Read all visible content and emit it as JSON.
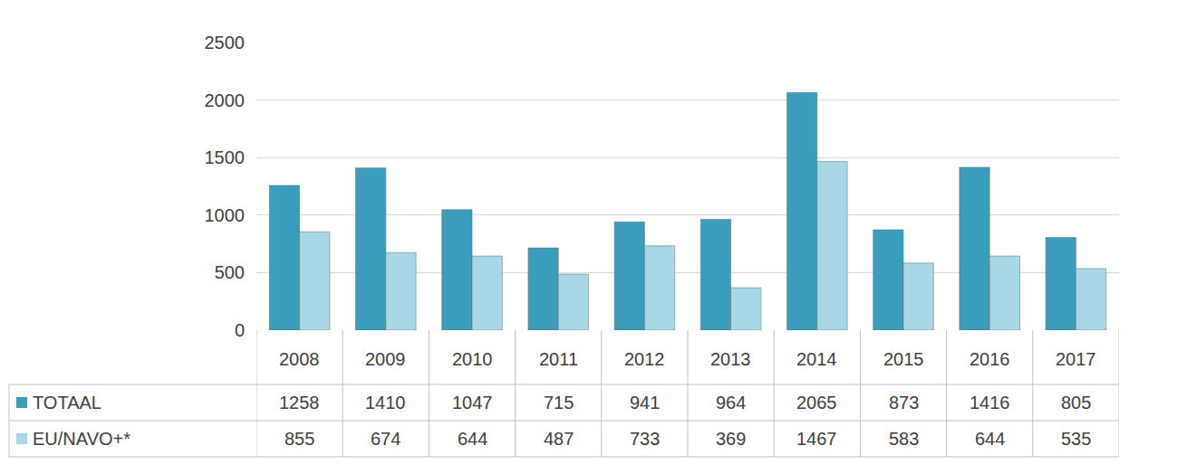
{
  "chart_data": {
    "type": "bar",
    "categories": [
      "2008",
      "2009",
      "2010",
      "2011",
      "2012",
      "2013",
      "2014",
      "2015",
      "2016",
      "2017"
    ],
    "series": [
      {
        "name": "TOTAAL",
        "color": "#3a9dbb",
        "values": [
          1258,
          1410,
          1047,
          715,
          941,
          964,
          2065,
          873,
          1416,
          805
        ]
      },
      {
        "name": "EU/NAVO+*",
        "color": "#a8d8e6",
        "values": [
          855,
          674,
          644,
          487,
          733,
          369,
          1467,
          583,
          644,
          535
        ]
      }
    ],
    "ylim": [
      0,
      2500
    ],
    "yticks": [
      0,
      500,
      1000,
      1500,
      2000,
      2500
    ],
    "grid": true
  }
}
